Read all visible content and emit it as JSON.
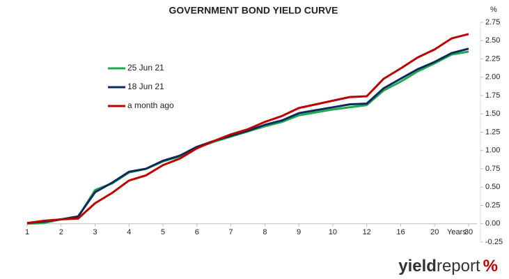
{
  "chart_data": {
    "type": "line",
    "title": "GOVERNMENT BOND YIELD CURVE",
    "y_unit": "%",
    "x_label": "Years",
    "categories": [
      "1",
      null,
      "2",
      null,
      "3",
      null,
      "4",
      null,
      "5",
      null,
      "6",
      null,
      "7",
      null,
      "8",
      null,
      "9",
      null,
      "10",
      null,
      "12",
      null,
      "16",
      null,
      "20",
      null,
      "30"
    ],
    "series": [
      {
        "name": "25 Jun 21",
        "color": "#1faa52",
        "values": [
          0.0,
          0.01,
          0.06,
          0.09,
          0.46,
          0.55,
          0.7,
          0.75,
          0.85,
          0.92,
          1.04,
          1.12,
          1.19,
          1.26,
          1.33,
          1.39,
          1.48,
          1.52,
          1.56,
          1.59,
          1.62,
          1.82,
          1.94,
          2.08,
          2.19,
          2.31,
          2.35
        ]
      },
      {
        "name": "18 Jun 21",
        "color": "#0d2a5a",
        "values": [
          0.01,
          0.03,
          0.06,
          0.1,
          0.43,
          0.56,
          0.71,
          0.75,
          0.86,
          0.93,
          1.05,
          1.13,
          1.2,
          1.27,
          1.35,
          1.41,
          1.51,
          1.55,
          1.59,
          1.63,
          1.64,
          1.85,
          1.98,
          2.11,
          2.21,
          2.33,
          2.39
        ]
      },
      {
        "name": "a month ago",
        "color": "#c00000",
        "values": [
          0.01,
          0.04,
          0.06,
          0.07,
          0.28,
          0.42,
          0.59,
          0.66,
          0.8,
          0.89,
          1.03,
          1.13,
          1.22,
          1.29,
          1.39,
          1.47,
          1.58,
          1.63,
          1.68,
          1.73,
          1.74,
          1.98,
          2.12,
          2.27,
          2.38,
          2.53,
          2.59
        ]
      }
    ],
    "ylim": [
      -0.25,
      2.75
    ],
    "yticks": [
      -0.25,
      {
        "value": 0,
        "label": "0.00"
      },
      0.25,
      {
        "value": 0.5,
        "label": "0.50"
      },
      0.75,
      {
        "value": 1,
        "label": "1.00"
      },
      1.25,
      {
        "value": 1.5,
        "label": "1.50"
      },
      1.75,
      {
        "value": 2,
        "label": "2.00"
      },
      2.25,
      {
        "value": 2.5,
        "label": "2.50"
      },
      2.75
    ],
    "legend": "upper left",
    "grid": false
  },
  "logo": [
    "yield",
    "report",
    "%"
  ]
}
